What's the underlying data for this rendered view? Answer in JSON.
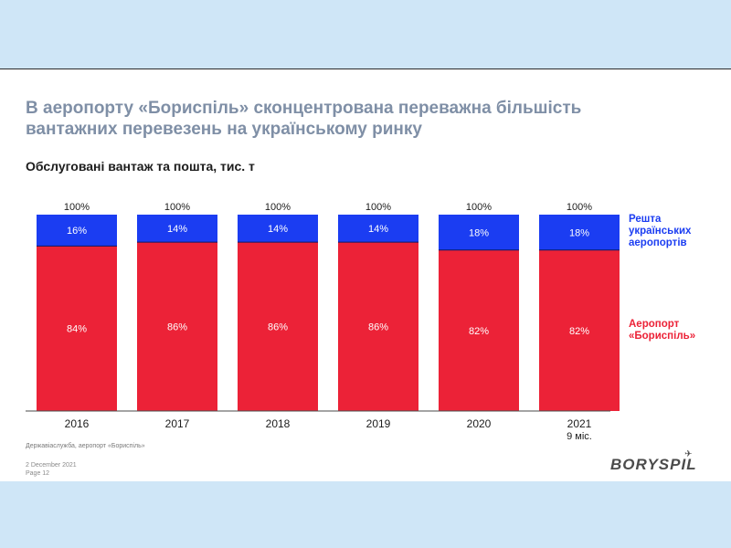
{
  "slide": {
    "headline": "В аеропорту «Бориспіль» сконцентрована переважна більшість вантажних перевезень на українському ринку",
    "subtitle": "Обслуговані вантаж та пошта, тис. т",
    "source": "Державіаслужба, аеропорт «Бориспіль»",
    "footer_date": "2 December 2021",
    "footer_page": "Page 12",
    "logo": "BORYSPIL"
  },
  "colors": {
    "boryspil": "#ec2237",
    "rest": "#1b3df2",
    "headline": "#7f8fa6",
    "axis": "#4a4a4a"
  },
  "legend": {
    "rest": "Решта\nукраїнських\nаеропортів",
    "boryspil": "Аеропорт\n«Бориспіль»"
  },
  "chart_data": {
    "type": "bar",
    "stacked": true,
    "categories": [
      "2016",
      "2017",
      "2018",
      "2019",
      "2020",
      "2021"
    ],
    "category_sublabels": [
      "",
      "",
      "",
      "",
      "",
      "9 міс."
    ],
    "totals": [
      "100%",
      "100%",
      "100%",
      "100%",
      "100%",
      "100%"
    ],
    "series": [
      {
        "name": "Аеропорт «Бориспіль»",
        "values": [
          84,
          86,
          86,
          86,
          82,
          82
        ]
      },
      {
        "name": "Решта українських аеропортів",
        "values": [
          16,
          14,
          14,
          14,
          18,
          18
        ]
      }
    ],
    "ylim": [
      0,
      100
    ],
    "grid": false,
    "legend_position": "right"
  }
}
